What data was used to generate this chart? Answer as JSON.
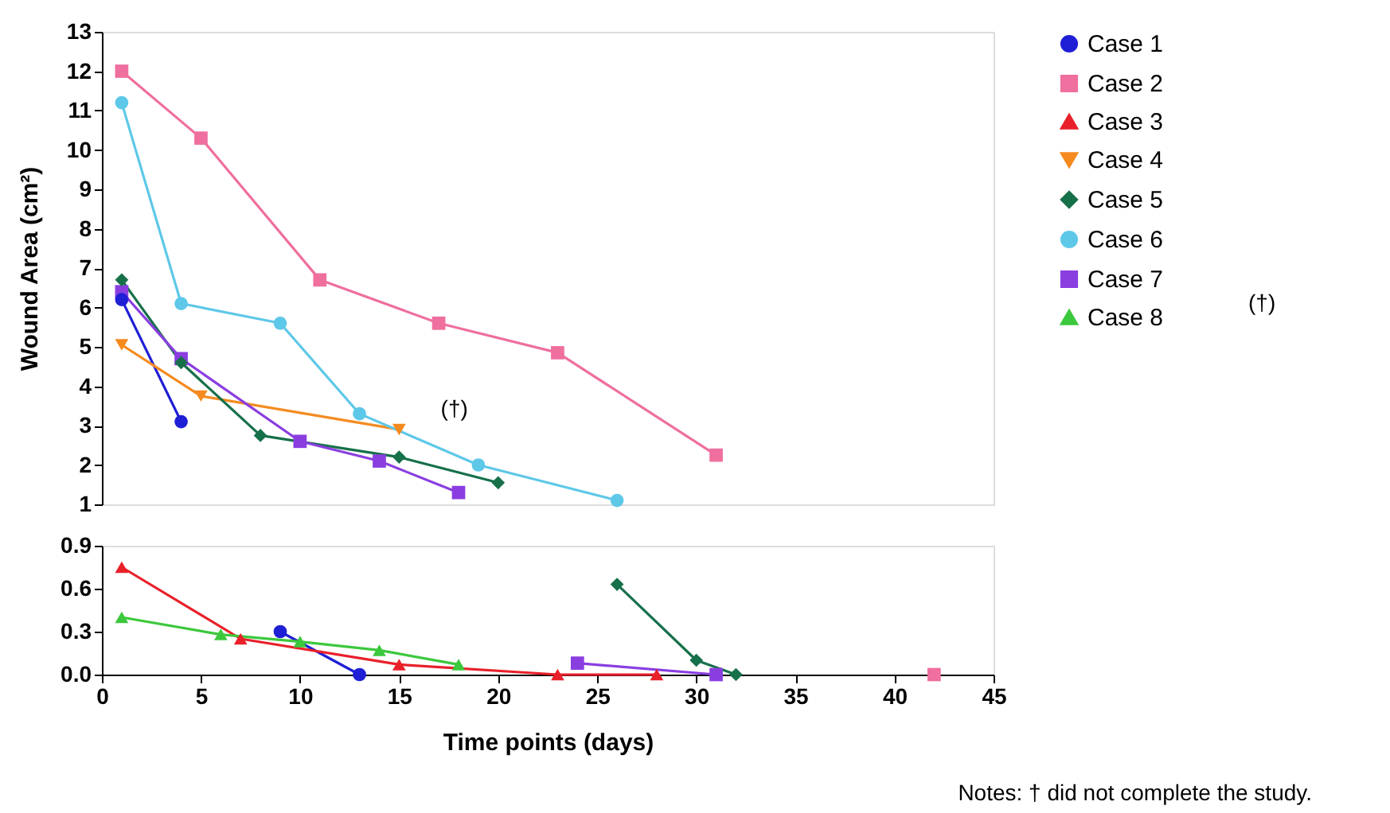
{
  "chart_data": [
    {
      "type": "line",
      "ylabel": "Wound Area (cm²)",
      "tick_labels": "y",
      "xlim": [
        0,
        45
      ],
      "ylim": [
        1,
        13
      ],
      "yticks": [
        1,
        2,
        3,
        4,
        5,
        6,
        7,
        8,
        9,
        10,
        11,
        12,
        13
      ],
      "grid": false,
      "legend": "right",
      "series": [
        {
          "name": "Case 1",
          "color": "#1f1fd6",
          "marker": "circle",
          "x": [
            1,
            4
          ],
          "values": [
            6.2,
            3.1
          ]
        },
        {
          "name": "Case 2",
          "color": "#ef6f9f",
          "marker": "square",
          "x": [
            1,
            5,
            11,
            17,
            23,
            31
          ],
          "values": [
            12.0,
            10.3,
            6.7,
            5.6,
            4.85,
            2.25
          ]
        },
        {
          "name": "Case 3",
          "color": "#e8202a",
          "marker": "triangle"
        },
        {
          "name": "Case 4",
          "color": "#f58a1f",
          "marker": "triangle-down",
          "x": [
            1,
            5,
            15
          ],
          "values": [
            5.05,
            3.75,
            2.9
          ]
        },
        {
          "name": "Case 5",
          "color": "#16704a",
          "marker": "diamond",
          "x": [
            1,
            4,
            8,
            15,
            20
          ],
          "values": [
            6.7,
            4.6,
            2.75,
            2.2,
            1.55
          ]
        },
        {
          "name": "Case 6",
          "color": "#5ec8e8",
          "marker": "circle",
          "x": [
            1,
            4,
            9,
            13,
            19,
            26
          ],
          "values": [
            11.2,
            6.1,
            5.6,
            3.3,
            2.0,
            1.1
          ]
        },
        {
          "name": "Case 7",
          "color": "#8a3ee0",
          "marker": "square",
          "x": [
            1,
            4,
            10,
            14,
            18
          ],
          "values": [
            6.4,
            4.7,
            2.6,
            2.1,
            1.3
          ]
        },
        {
          "name": "Case 8",
          "color": "#3cc83c",
          "marker": "triangle"
        }
      ],
      "annotations": [
        "(†)",
        "(†)"
      ]
    },
    {
      "type": "line",
      "xlabel": "Time points (days)",
      "xlim": [
        0,
        45
      ],
      "xticks": [
        0,
        5,
        10,
        15,
        20,
        25,
        30,
        35,
        40,
        45
      ],
      "ylim": [
        0,
        0.9
      ],
      "yticks": [
        {
          "value": 0,
          "label": "0.0"
        },
        {
          "value": 0.3,
          "label": "0.3"
        },
        {
          "value": 0.6,
          "label": "0.6"
        },
        {
          "value": 0.9,
          "label": "0.9"
        }
      ],
      "grid": false,
      "series": [
        {
          "color": "#1f1fd6",
          "marker": "circle",
          "x": [
            9,
            13
          ],
          "values": [
            0.3,
            0.0
          ]
        },
        {
          "color": "#ef6f9f",
          "marker": "square",
          "x": [
            42
          ],
          "values": [
            0.0
          ]
        },
        {
          "color": "#e8202a",
          "marker": "triangle",
          "x": [
            1,
            7,
            15,
            23,
            28
          ],
          "values": [
            0.75,
            0.25,
            0.07,
            0.0,
            0.0
          ]
        },
        {
          "color": "#16704a",
          "marker": "diamond",
          "x": [
            26,
            30,
            32
          ],
          "values": [
            0.63,
            0.1,
            0.0
          ]
        },
        {
          "color": "#8a3ee0",
          "marker": "square",
          "x": [
            24,
            31
          ],
          "values": [
            0.08,
            0.0
          ]
        },
        {
          "color": "#3cc83c",
          "marker": "triangle",
          "x": [
            1,
            6,
            10,
            14,
            18
          ],
          "values": [
            0.4,
            0.28,
            0.23,
            0.17,
            0.07
          ]
        }
      ],
      "annotations": [
        "Notes: † did not complete the study."
      ]
    }
  ]
}
